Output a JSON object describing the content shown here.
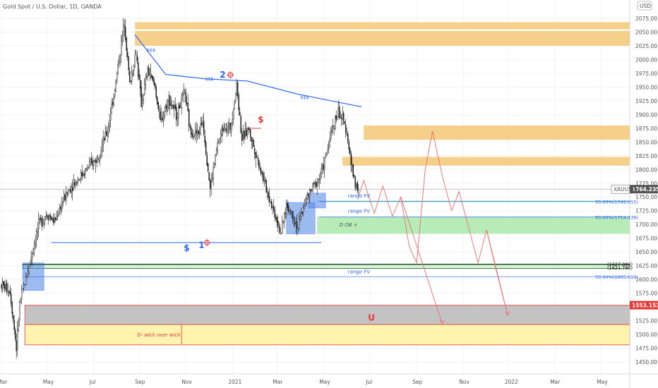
{
  "chart_data": {
    "type": "candlestick",
    "title": "Gold Spot / U.S. Dollar, 1D, OANDA",
    "currency": "USD",
    "ylim": [
      1440,
      2085
    ],
    "y_ticks": [
      1450,
      1475,
      1500,
      1525,
      1550,
      1575,
      1600,
      1625,
      1650,
      1675,
      1700,
      1725,
      1750,
      1775,
      1800,
      1825,
      1850,
      1875,
      1900,
      1925,
      1950,
      1975,
      2000,
      2025,
      2050,
      2075
    ],
    "x_ticks": [
      {
        "label": "Mar",
        "i": 0
      },
      {
        "label": "May",
        "i": 43
      },
      {
        "label": "Jul",
        "i": 87
      },
      {
        "label": "Sep",
        "i": 130
      },
      {
        "label": "Nov",
        "i": 174
      },
      {
        "label": "2021",
        "i": 218
      },
      {
        "label": "Mar",
        "i": 260
      },
      {
        "label": "May",
        "i": 304
      },
      {
        "label": "Jul",
        "i": 348
      },
      {
        "label": "Sep",
        "i": 392
      },
      {
        "label": "Nov",
        "i": 436
      },
      {
        "label": "2022",
        "i": 479
      },
      {
        "label": "Mar",
        "i": 522
      },
      {
        "label": "May",
        "i": 566
      }
    ],
    "price_waypoints": [
      [
        0,
        1590
      ],
      [
        8,
        1580
      ],
      [
        14,
        1475
      ],
      [
        17,
        1555
      ],
      [
        24,
        1610
      ],
      [
        35,
        1700
      ],
      [
        43,
        1720
      ],
      [
        50,
        1705
      ],
      [
        57,
        1740
      ],
      [
        66,
        1770
      ],
      [
        80,
        1800
      ],
      [
        90,
        1820
      ],
      [
        100,
        1870
      ],
      [
        108,
        1960
      ],
      [
        116,
        2070
      ],
      [
        121,
        1955
      ],
      [
        127,
        2015
      ],
      [
        132,
        1920
      ],
      [
        138,
        1980
      ],
      [
        145,
        1950
      ],
      [
        150,
        1885
      ],
      [
        158,
        1930
      ],
      [
        165,
        1900
      ],
      [
        173,
        1940
      ],
      [
        178,
        1870
      ],
      [
        186,
        1865
      ],
      [
        190,
        1890
      ],
      [
        197,
        1765
      ],
      [
        204,
        1845
      ],
      [
        210,
        1880
      ],
      [
        216,
        1875
      ],
      [
        222,
        1955
      ],
      [
        227,
        1855
      ],
      [
        233,
        1875
      ],
      [
        240,
        1830
      ],
      [
        250,
        1765
      ],
      [
        258,
        1720
      ],
      [
        264,
        1685
      ],
      [
        269,
        1735
      ],
      [
        274,
        1720
      ],
      [
        280,
        1695
      ],
      [
        286,
        1740
      ],
      [
        292,
        1760
      ],
      [
        300,
        1785
      ],
      [
        306,
        1820
      ],
      [
        312,
        1875
      ],
      [
        318,
        1905
      ],
      [
        322,
        1890
      ],
      [
        326,
        1870
      ],
      [
        330,
        1810
      ],
      [
        334,
        1775
      ],
      [
        337,
        1764
      ]
    ],
    "last_price": "1764.235",
    "symbol": "XAUUSD",
    "price_tag": "1553.153",
    "zones": [
      {
        "name": "supply-top",
        "y1": 2025,
        "y2": 2065,
        "x1": "Aug 2020",
        "x2": "right edge"
      },
      {
        "name": "supply-mid-1",
        "y1": 1855,
        "y2": 1880
      },
      {
        "name": "supply-mid-2",
        "y1": 1808,
        "y2": 1820
      },
      {
        "name": "range-fv-1",
        "y1": 1742,
        "y2": 1747
      },
      {
        "name": "demand-ob",
        "y1": 1685,
        "y2": 1714
      },
      {
        "name": "range-fv-3",
        "y1": 1604,
        "y2": 1625
      },
      {
        "name": "grey-zone",
        "y1": 1518,
        "y2": 1553
      },
      {
        "name": "d-wick-zone",
        "y1": 1482,
        "y2": 1518
      }
    ],
    "projection_path": [
      [
        337,
        1750
      ],
      [
        342,
        1780
      ],
      [
        352,
        1720
      ],
      [
        360,
        1770
      ],
      [
        369,
        1715
      ],
      [
        377,
        1750
      ],
      [
        385,
        1660
      ],
      [
        392,
        1630
      ],
      [
        400,
        1800
      ],
      [
        407,
        1870
      ],
      [
        416,
        1790
      ],
      [
        425,
        1725
      ],
      [
        432,
        1760
      ],
      [
        441,
        1695
      ],
      [
        450,
        1630
      ],
      [
        458,
        1690
      ],
      [
        466,
        1625
      ],
      [
        478,
        1535
      ]
    ],
    "projection_branches": [
      [
        [
          377,
          1750
        ],
        [
          416,
          1520
        ]
      ],
      [
        [
          458,
          1690
        ],
        [
          478,
          1535
        ]
      ]
    ],
    "annotations": {
      "range_fv_1": "range FV",
      "range_fv_2": "range FV",
      "range_fv_3": "range FV",
      "fib_1": "50.00%(1742.055)",
      "fib_2": "50.00%(1714.439)",
      "fib_3": "50.00%(1605.699)",
      "label_1627": "(1627.086)",
      "label_1623": "(1621.785)",
      "d_ob": "D OB +",
      "d_wick": "D- wick over wick",
      "num_2": "2",
      "num_1": "1",
      "dollar_red": "$",
      "dollar_blue": "$",
      "sss1": "$$$",
      "sss2": "$$$",
      "sss3": "$$$",
      "magnet": "U"
    },
    "colors": {
      "up": "#26a69a",
      "down": "#000000",
      "candle": "#1a1a1a",
      "supply": "#f5d08a",
      "demand": "#b7ecb7",
      "grey": "#9e9e9e",
      "yellow": "#fff3b0",
      "blue": "#2962ff",
      "red": "#e53935",
      "green": "#1b5e20"
    }
  }
}
